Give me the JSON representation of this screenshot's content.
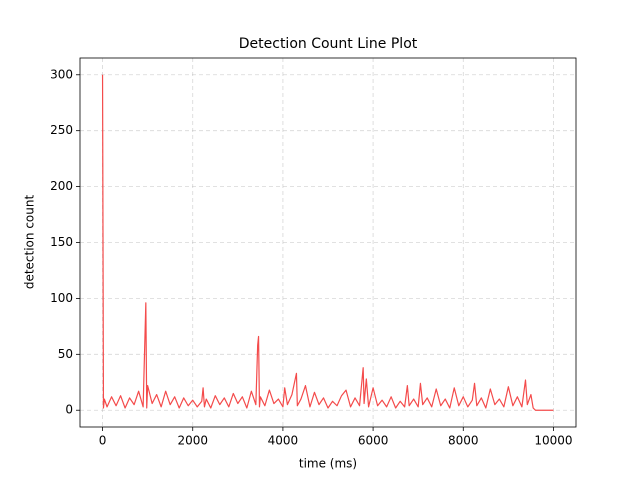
{
  "chart_data": {
    "type": "line",
    "title": "Detection Count Line Plot",
    "xlabel": "time (ms)",
    "ylabel": "detection count",
    "x": [
      0,
      20,
      40,
      100,
      200,
      300,
      400,
      500,
      600,
      700,
      800,
      900,
      960,
      980,
      1000,
      1100,
      1200,
      1300,
      1400,
      1500,
      1600,
      1700,
      1800,
      1900,
      2000,
      2100,
      2200,
      2230,
      2260,
      2300,
      2400,
      2500,
      2600,
      2700,
      2800,
      2900,
      3000,
      3100,
      3200,
      3300,
      3400,
      3440,
      3460,
      3480,
      3500,
      3600,
      3700,
      3800,
      3900,
      4000,
      4040,
      4100,
      4200,
      4300,
      4320,
      4400,
      4500,
      4600,
      4700,
      4800,
      4900,
      5000,
      5100,
      5200,
      5300,
      5400,
      5500,
      5600,
      5700,
      5780,
      5800,
      5850,
      5900,
      6000,
      6100,
      6200,
      6300,
      6400,
      6500,
      6600,
      6700,
      6760,
      6800,
      6900,
      7000,
      7050,
      7100,
      7200,
      7300,
      7400,
      7500,
      7600,
      7700,
      7800,
      7900,
      8000,
      8100,
      8200,
      8250,
      8300,
      8400,
      8500,
      8600,
      8700,
      8800,
      8900,
      9000,
      9100,
      9200,
      9300,
      9380,
      9420,
      9500,
      9550,
      9600,
      9700,
      10000
    ],
    "series": [
      {
        "color": "#f44b4b",
        "values": [
          300,
          2,
          10,
          3,
          12,
          4,
          13,
          2,
          11,
          5,
          17,
          3,
          96,
          2,
          22,
          6,
          14,
          3,
          17,
          5,
          12,
          2,
          11,
          4,
          9,
          3,
          8,
          20,
          3,
          10,
          2,
          13,
          5,
          11,
          3,
          15,
          6,
          12,
          2,
          17,
          5,
          58,
          66,
          3,
          12,
          4,
          18,
          6,
          10,
          3,
          20,
          5,
          14,
          33,
          4,
          10,
          22,
          3,
          16,
          5,
          11,
          2,
          8,
          4,
          13,
          18,
          3,
          11,
          4,
          38,
          6,
          28,
          3,
          20,
          4,
          9,
          3,
          12,
          2,
          8,
          3,
          22,
          4,
          10,
          3,
          24,
          5,
          11,
          3,
          19,
          4,
          10,
          2,
          20,
          4,
          12,
          3,
          9,
          24,
          4,
          11,
          2,
          19,
          5,
          10,
          3,
          21,
          4,
          12,
          3,
          27,
          5,
          14,
          2,
          0,
          0,
          0
        ]
      }
    ],
    "xlim": [
      -500,
      10500
    ],
    "ylim": [
      -15,
      315
    ],
    "xticks": [
      0,
      2000,
      4000,
      6000,
      8000,
      10000
    ],
    "yticks": [
      0,
      50,
      100,
      150,
      200,
      250,
      300
    ],
    "grid": true
  }
}
